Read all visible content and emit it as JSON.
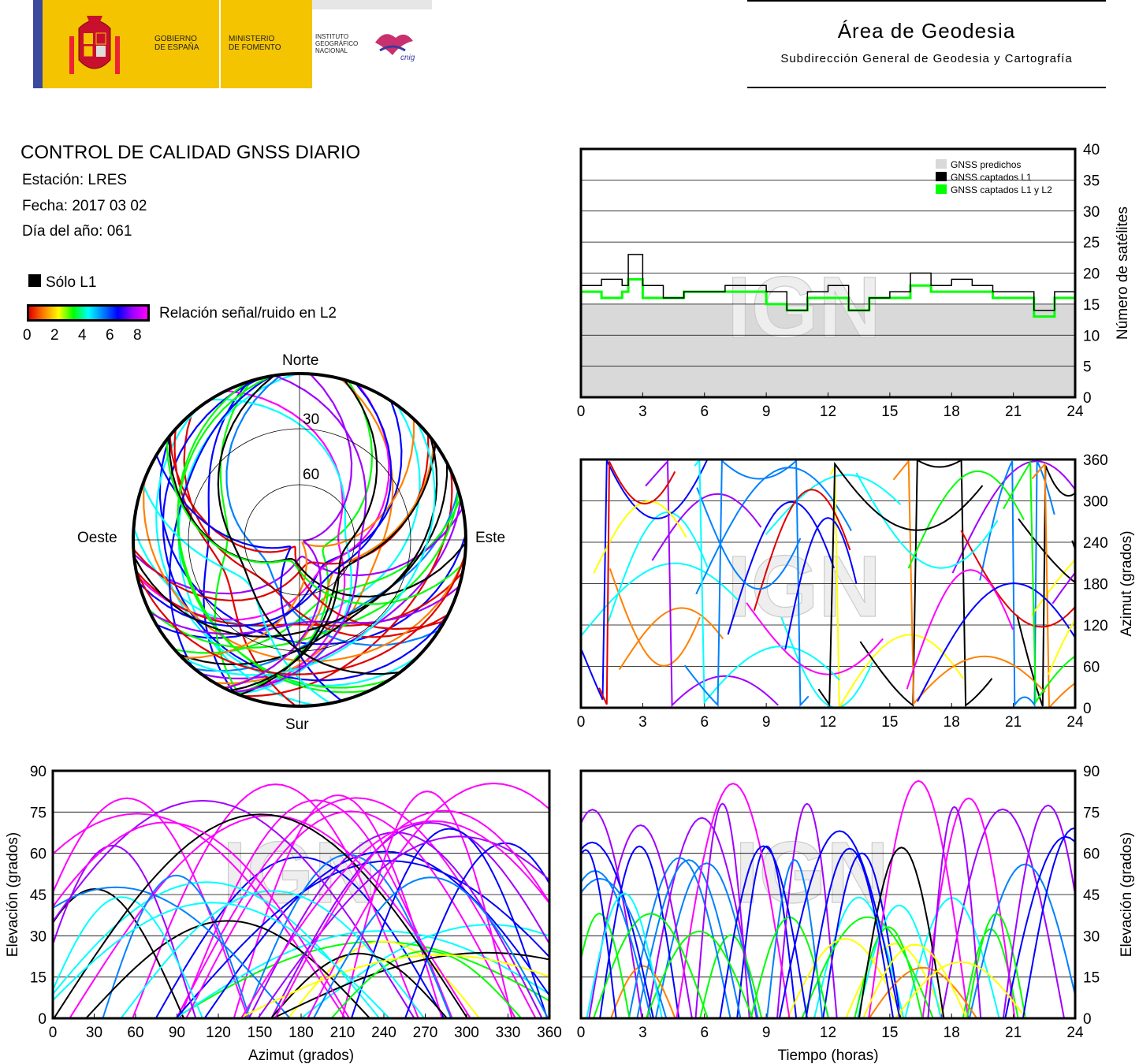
{
  "header": {
    "gob_line1": "GOBIERNO",
    "gob_line2": "DE ESPAÑA",
    "min_line1": "MINISTERIO",
    "min_line2": "DE FOMENTO",
    "ign_line1": "INSTITUTO",
    "ign_line2": "GEOGRÁFICO",
    "ign_line3": "NACIONAL",
    "cnig": "cnig",
    "area_title": "Área de Geodesia",
    "area_subtitle": "Subdirección General de Geodesia y Cartografía"
  },
  "report": {
    "title": "CONTROL DE CALIDAD GNSS DIARIO",
    "station": "Estación: LRES",
    "date": "Fecha: 2017 03 02",
    "doy": "Día del año: 061"
  },
  "legend": {
    "only_l1": "Sólo L1",
    "snr_label": "Relación señal/ruido en L2",
    "snr_ticks": [
      "0",
      "2",
      "4",
      "6",
      "8"
    ],
    "colors": [
      "#e00000",
      "#ff8000",
      "#ffff00",
      "#00ff00",
      "#00ffff",
      "#0080ff",
      "#0000ff",
      "#a000ff",
      "#ff00ff"
    ]
  },
  "watermark": "IGN",
  "chart_data": [
    {
      "type": "polar",
      "id": "skyplot",
      "labels": {
        "north": "Norte",
        "south": "Sur",
        "east": "Este",
        "west": "Oeste"
      },
      "rings": [
        "30",
        "60"
      ]
    },
    {
      "type": "area",
      "id": "satellites",
      "ylabel": "Número de satélites",
      "xlim": [
        0,
        24
      ],
      "ylim": [
        0,
        40
      ],
      "xticks": [
        "0",
        "3",
        "6",
        "9",
        "12",
        "15",
        "18",
        "21",
        "24"
      ],
      "yticks": [
        "0",
        "5",
        "10",
        "15",
        "20",
        "25",
        "30",
        "35",
        "40"
      ],
      "legend": [
        "GNSS predichos",
        "GNSS captados L1",
        "GNSS captados L1 y L2"
      ],
      "legend_colors": [
        "#d9d9d9",
        "#000000",
        "#00ff00"
      ],
      "series": [
        {
          "name": "GNSS predichos",
          "x": [
            0,
            1,
            2,
            3,
            4,
            5,
            6,
            7,
            8,
            9,
            10,
            11,
            12,
            13,
            14,
            15,
            16,
            17,
            18,
            19,
            20,
            21,
            22,
            23,
            24
          ],
          "values": [
            15,
            15,
            15,
            15,
            15,
            15,
            15,
            15,
            15,
            15,
            15,
            15,
            15,
            15,
            15,
            15,
            15,
            15,
            15,
            15,
            15,
            15,
            15,
            15,
            15
          ]
        },
        {
          "name": "GNSS captados L1",
          "x": [
            0,
            1,
            2,
            2.3,
            3,
            4,
            5,
            6,
            7,
            8,
            9,
            10,
            11,
            12,
            13,
            14,
            15,
            16,
            17,
            18,
            19,
            20,
            21,
            22,
            23,
            24
          ],
          "values": [
            18,
            19,
            18,
            23,
            18,
            16,
            17,
            17,
            18,
            18,
            17,
            14,
            17,
            18,
            14,
            16,
            17,
            20,
            18,
            19,
            18,
            17,
            17,
            14,
            17,
            18
          ]
        },
        {
          "name": "GNSS captados L1 y L2",
          "x": [
            0,
            1,
            2,
            2.3,
            3,
            4,
            5,
            6,
            7,
            8,
            9,
            10,
            11,
            12,
            13,
            14,
            15,
            16,
            17,
            18,
            19,
            20,
            21,
            22,
            23,
            24
          ],
          "values": [
            17,
            16,
            17,
            19,
            16,
            16,
            17,
            17,
            17,
            17,
            15,
            14,
            16,
            16,
            14,
            16,
            16,
            18,
            17,
            17,
            17,
            16,
            16,
            13,
            16,
            17
          ]
        }
      ]
    },
    {
      "type": "scatter",
      "id": "azimuth-time",
      "ylabel": "Azimut (grados)",
      "xlim": [
        0,
        24
      ],
      "ylim": [
        0,
        360
      ],
      "xticks": [
        "0",
        "3",
        "6",
        "9",
        "12",
        "15",
        "18",
        "21",
        "24"
      ],
      "yticks": [
        "0",
        "60",
        "120",
        "180",
        "240",
        "300",
        "360"
      ]
    },
    {
      "type": "scatter",
      "id": "elevation-azimuth",
      "xlabel": "Azimut (grados)",
      "ylabel": "Elevación (grados)",
      "xlim": [
        0,
        360
      ],
      "ylim": [
        0,
        90
      ],
      "xticks": [
        "0",
        "30",
        "60",
        "90",
        "120",
        "150",
        "180",
        "210",
        "240",
        "270",
        "300",
        "330",
        "360"
      ],
      "yticks": [
        "0",
        "15",
        "30",
        "45",
        "60",
        "75",
        "90"
      ]
    },
    {
      "type": "scatter",
      "id": "elevation-time",
      "xlabel": "Tiempo (horas)",
      "ylabel": "Elevación (grados)",
      "xlim": [
        0,
        24
      ],
      "ylim": [
        0,
        90
      ],
      "xticks": [
        "0",
        "3",
        "6",
        "9",
        "12",
        "15",
        "18",
        "21",
        "24"
      ],
      "yticks": [
        "0",
        "15",
        "30",
        "45",
        "60",
        "75",
        "90"
      ]
    }
  ]
}
